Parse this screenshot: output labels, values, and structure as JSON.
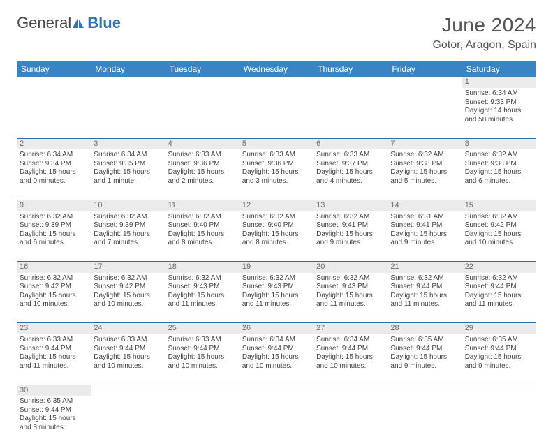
{
  "logo": {
    "part1": "General",
    "part2": "Blue"
  },
  "title": "June 2024",
  "location": "Gotor, Aragon, Spain",
  "colors": {
    "header_bg": "#3b84c4",
    "header_text": "#ffffff",
    "daynum_bg": "#ebebeb",
    "daynum_text": "#6a6a6a",
    "row_divider": "#2d6aa8",
    "body_text": "#444444",
    "logo_gray": "#4a4a4a",
    "logo_blue": "#2d75b6"
  },
  "weekdays": [
    "Sunday",
    "Monday",
    "Tuesday",
    "Wednesday",
    "Thursday",
    "Friday",
    "Saturday"
  ],
  "weeks": [
    [
      null,
      null,
      null,
      null,
      null,
      null,
      {
        "n": "1",
        "sr": "Sunrise: 6:34 AM",
        "ss": "Sunset: 9:33 PM",
        "dl": "Daylight: 14 hours and 58 minutes."
      }
    ],
    [
      {
        "n": "2",
        "sr": "Sunrise: 6:34 AM",
        "ss": "Sunset: 9:34 PM",
        "dl": "Daylight: 15 hours and 0 minutes."
      },
      {
        "n": "3",
        "sr": "Sunrise: 6:34 AM",
        "ss": "Sunset: 9:35 PM",
        "dl": "Daylight: 15 hours and 1 minute."
      },
      {
        "n": "4",
        "sr": "Sunrise: 6:33 AM",
        "ss": "Sunset: 9:36 PM",
        "dl": "Daylight: 15 hours and 2 minutes."
      },
      {
        "n": "5",
        "sr": "Sunrise: 6:33 AM",
        "ss": "Sunset: 9:36 PM",
        "dl": "Daylight: 15 hours and 3 minutes."
      },
      {
        "n": "6",
        "sr": "Sunrise: 6:33 AM",
        "ss": "Sunset: 9:37 PM",
        "dl": "Daylight: 15 hours and 4 minutes."
      },
      {
        "n": "7",
        "sr": "Sunrise: 6:32 AM",
        "ss": "Sunset: 9:38 PM",
        "dl": "Daylight: 15 hours and 5 minutes."
      },
      {
        "n": "8",
        "sr": "Sunrise: 6:32 AM",
        "ss": "Sunset: 9:38 PM",
        "dl": "Daylight: 15 hours and 6 minutes."
      }
    ],
    [
      {
        "n": "9",
        "sr": "Sunrise: 6:32 AM",
        "ss": "Sunset: 9:39 PM",
        "dl": "Daylight: 15 hours and 6 minutes."
      },
      {
        "n": "10",
        "sr": "Sunrise: 6:32 AM",
        "ss": "Sunset: 9:39 PM",
        "dl": "Daylight: 15 hours and 7 minutes."
      },
      {
        "n": "11",
        "sr": "Sunrise: 6:32 AM",
        "ss": "Sunset: 9:40 PM",
        "dl": "Daylight: 15 hours and 8 minutes."
      },
      {
        "n": "12",
        "sr": "Sunrise: 6:32 AM",
        "ss": "Sunset: 9:40 PM",
        "dl": "Daylight: 15 hours and 8 minutes."
      },
      {
        "n": "13",
        "sr": "Sunrise: 6:32 AM",
        "ss": "Sunset: 9:41 PM",
        "dl": "Daylight: 15 hours and 9 minutes."
      },
      {
        "n": "14",
        "sr": "Sunrise: 6:31 AM",
        "ss": "Sunset: 9:41 PM",
        "dl": "Daylight: 15 hours and 9 minutes."
      },
      {
        "n": "15",
        "sr": "Sunrise: 6:32 AM",
        "ss": "Sunset: 9:42 PM",
        "dl": "Daylight: 15 hours and 10 minutes."
      }
    ],
    [
      {
        "n": "16",
        "sr": "Sunrise: 6:32 AM",
        "ss": "Sunset: 9:42 PM",
        "dl": "Daylight: 15 hours and 10 minutes."
      },
      {
        "n": "17",
        "sr": "Sunrise: 6:32 AM",
        "ss": "Sunset: 9:42 PM",
        "dl": "Daylight: 15 hours and 10 minutes."
      },
      {
        "n": "18",
        "sr": "Sunrise: 6:32 AM",
        "ss": "Sunset: 9:43 PM",
        "dl": "Daylight: 15 hours and 11 minutes."
      },
      {
        "n": "19",
        "sr": "Sunrise: 6:32 AM",
        "ss": "Sunset: 9:43 PM",
        "dl": "Daylight: 15 hours and 11 minutes."
      },
      {
        "n": "20",
        "sr": "Sunrise: 6:32 AM",
        "ss": "Sunset: 9:43 PM",
        "dl": "Daylight: 15 hours and 11 minutes."
      },
      {
        "n": "21",
        "sr": "Sunrise: 6:32 AM",
        "ss": "Sunset: 9:44 PM",
        "dl": "Daylight: 15 hours and 11 minutes."
      },
      {
        "n": "22",
        "sr": "Sunrise: 6:32 AM",
        "ss": "Sunset: 9:44 PM",
        "dl": "Daylight: 15 hours and 11 minutes."
      }
    ],
    [
      {
        "n": "23",
        "sr": "Sunrise: 6:33 AM",
        "ss": "Sunset: 9:44 PM",
        "dl": "Daylight: 15 hours and 11 minutes."
      },
      {
        "n": "24",
        "sr": "Sunrise: 6:33 AM",
        "ss": "Sunset: 9:44 PM",
        "dl": "Daylight: 15 hours and 10 minutes."
      },
      {
        "n": "25",
        "sr": "Sunrise: 6:33 AM",
        "ss": "Sunset: 9:44 PM",
        "dl": "Daylight: 15 hours and 10 minutes."
      },
      {
        "n": "26",
        "sr": "Sunrise: 6:34 AM",
        "ss": "Sunset: 9:44 PM",
        "dl": "Daylight: 15 hours and 10 minutes."
      },
      {
        "n": "27",
        "sr": "Sunrise: 6:34 AM",
        "ss": "Sunset: 9:44 PM",
        "dl": "Daylight: 15 hours and 10 minutes."
      },
      {
        "n": "28",
        "sr": "Sunrise: 6:35 AM",
        "ss": "Sunset: 9:44 PM",
        "dl": "Daylight: 15 hours and 9 minutes."
      },
      {
        "n": "29",
        "sr": "Sunrise: 6:35 AM",
        "ss": "Sunset: 9:44 PM",
        "dl": "Daylight: 15 hours and 9 minutes."
      }
    ],
    [
      {
        "n": "30",
        "sr": "Sunrise: 6:35 AM",
        "ss": "Sunset: 9:44 PM",
        "dl": "Daylight: 15 hours and 8 minutes."
      },
      null,
      null,
      null,
      null,
      null,
      null
    ]
  ]
}
